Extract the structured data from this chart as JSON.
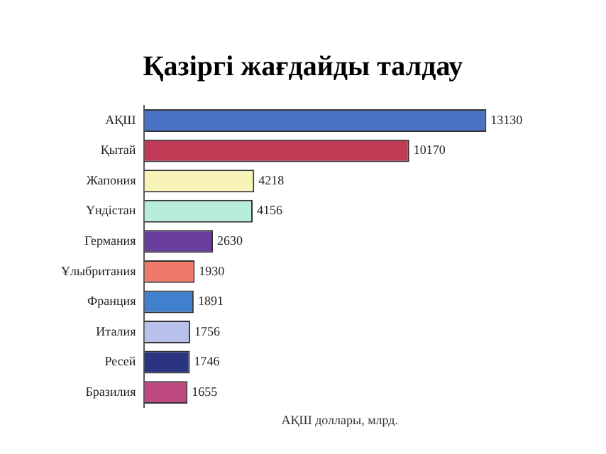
{
  "chart_data": {
    "type": "bar",
    "orientation": "horizontal",
    "title": "Қазіргі жағдайды талдау",
    "xlabel": "АҚШ доллары, млрд.",
    "categories": [
      "АҚШ",
      "Қытай",
      "Жапония",
      "Үндістан",
      "Германия",
      "Ұлыбритания",
      "Франция",
      "Италия",
      "Ресей",
      "Бразилия"
    ],
    "values": [
      13130,
      10170,
      4218,
      4156,
      2630,
      1930,
      1891,
      1756,
      1746,
      1655
    ],
    "colors": [
      "#4a72c4",
      "#c03a55",
      "#f8f4b8",
      "#b8ecdc",
      "#6a3e9e",
      "#f07a6a",
      "#4080cc",
      "#b8c0ec",
      "#2a3480",
      "#c04880"
    ],
    "data_labels": true,
    "grid": false,
    "legend": false
  }
}
